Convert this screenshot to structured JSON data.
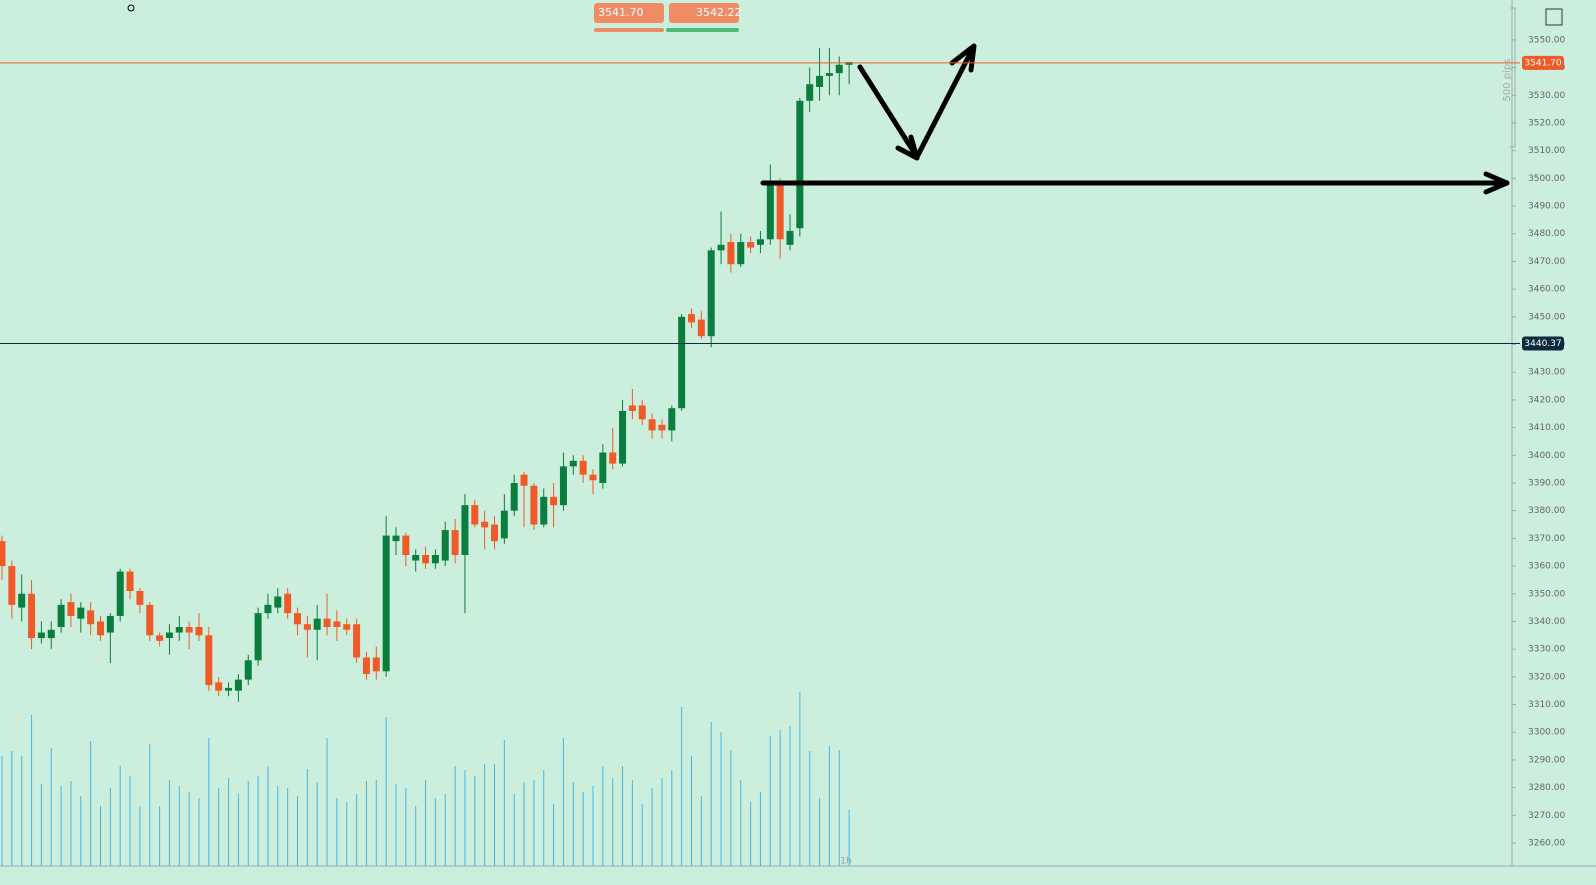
{
  "chart_data": {
    "type": "candlestick",
    "interval": "1h",
    "range_label": "500 pips",
    "sell_price": "3541.70",
    "buy_price": "3542.22",
    "ylim": [
      3251.7,
      3564.4
    ],
    "yticks": [
      {
        "value": 3550,
        "label": "3550.00"
      },
      {
        "value": 3540,
        "label": "3540.00"
      },
      {
        "value": 3530,
        "label": "3530.00"
      },
      {
        "value": 3520,
        "label": "3520.00"
      },
      {
        "value": 3510,
        "label": "3510.00"
      },
      {
        "value": 3500,
        "label": "3500.00"
      },
      {
        "value": 3490,
        "label": "3490.00"
      },
      {
        "value": 3480,
        "label": "3480.00"
      },
      {
        "value": 3470,
        "label": "3470.00"
      },
      {
        "value": 3460,
        "label": "3460.00"
      },
      {
        "value": 3450,
        "label": "3450.00"
      },
      {
        "value": 3440,
        "label": "3440.00"
      },
      {
        "value": 3430,
        "label": "3430.00"
      },
      {
        "value": 3420,
        "label": "3420.00"
      },
      {
        "value": 3410,
        "label": "3410.00"
      },
      {
        "value": 3400,
        "label": "3400.00"
      },
      {
        "value": 3390,
        "label": "3390.00"
      },
      {
        "value": 3380,
        "label": "3380.00"
      },
      {
        "value": 3370,
        "label": "3370.00"
      },
      {
        "value": 3360,
        "label": "3360.00"
      },
      {
        "value": 3350,
        "label": "3350.00"
      },
      {
        "value": 3340,
        "label": "3340.00"
      },
      {
        "value": 3330,
        "label": "3330.00"
      },
      {
        "value": 3320,
        "label": "3320.00"
      },
      {
        "value": 3310,
        "label": "3310.00"
      },
      {
        "value": 3300,
        "label": "3300.00"
      },
      {
        "value": 3290,
        "label": "3290.00"
      },
      {
        "value": 3280,
        "label": "3280.00"
      },
      {
        "value": 3270,
        "label": "3270.00"
      },
      {
        "value": 3260,
        "label": "3260.00"
      }
    ],
    "price_lines": [
      {
        "value": 3541.7,
        "label": "3541.70",
        "color": "#f05a28"
      },
      {
        "value": 3440.37,
        "label": "3440.37",
        "color": "#0d2a3f"
      }
    ],
    "up_color": "#0b7d3e",
    "down_color": "#f05a28",
    "volume_color": "#45b5e6",
    "ohlc": [
      [
        3369,
        3371,
        3355,
        3360
      ],
      [
        3360,
        3362,
        3341,
        3346
      ],
      [
        3345,
        3357,
        3340,
        3350
      ],
      [
        3350,
        3355,
        3330,
        3334
      ],
      [
        3334,
        3340,
        3332,
        3336
      ],
      [
        3334,
        3340,
        3330,
        3337
      ],
      [
        3338,
        3348,
        3336,
        3346
      ],
      [
        3347,
        3350,
        3338,
        3342
      ],
      [
        3341,
        3347,
        3336,
        3345
      ],
      [
        3344,
        3347,
        3335,
        3339
      ],
      [
        3340,
        3342,
        3333,
        3335
      ],
      [
        3336,
        3343,
        3325,
        3342
      ],
      [
        3342,
        3359,
        3340,
        3358
      ],
      [
        3358,
        3359,
        3348,
        3351
      ],
      [
        3351,
        3352,
        3343,
        3346
      ],
      [
        3346,
        3347,
        3333,
        3335
      ],
      [
        3335,
        3336,
        3331,
        3333
      ],
      [
        3334,
        3339,
        3328,
        3336
      ],
      [
        3336,
        3342,
        3333,
        3338
      ],
      [
        3338,
        3340,
        3330,
        3336
      ],
      [
        3338,
        3343,
        3333,
        3335
      ],
      [
        3335,
        3338,
        3315,
        3317
      ],
      [
        3318,
        3320,
        3313,
        3315
      ],
      [
        3315,
        3318,
        3313,
        3316
      ],
      [
        3315,
        3321,
        3311,
        3319
      ],
      [
        3319,
        3328,
        3317,
        3326
      ],
      [
        3326,
        3345,
        3324,
        3343
      ],
      [
        3343,
        3350,
        3341,
        3346
      ],
      [
        3345,
        3352,
        3343,
        3349
      ],
      [
        3350,
        3352,
        3341,
        3343
      ],
      [
        3343,
        3345,
        3335,
        3339
      ],
      [
        3339,
        3342,
        3327,
        3337
      ],
      [
        3337,
        3346,
        3326,
        3341
      ],
      [
        3341,
        3350,
        3335,
        3338
      ],
      [
        3340,
        3344,
        3333,
        3338
      ],
      [
        3339,
        3341,
        3335,
        3337
      ],
      [
        3339,
        3341,
        3325,
        3327
      ],
      [
        3327,
        3329,
        3319,
        3321
      ],
      [
        3327,
        3331,
        3319,
        3322
      ],
      [
        3322,
        3378,
        3320,
        3371
      ],
      [
        3369,
        3374,
        3364,
        3371
      ],
      [
        3371,
        3372,
        3360,
        3364
      ],
      [
        3362,
        3366,
        3358,
        3364
      ],
      [
        3364,
        3367,
        3359,
        3361
      ],
      [
        3361,
        3366,
        3359,
        3364
      ],
      [
        3362,
        3376,
        3360,
        3373
      ],
      [
        3373,
        3377,
        3361,
        3364
      ],
      [
        3364,
        3386,
        3343,
        3382
      ],
      [
        3382,
        3384,
        3374,
        3375
      ],
      [
        3376,
        3380,
        3366,
        3374
      ],
      [
        3375,
        3378,
        3366,
        3369
      ],
      [
        3370,
        3386,
        3368,
        3380
      ],
      [
        3380,
        3393,
        3378,
        3390
      ],
      [
        3393,
        3394,
        3374,
        3389
      ],
      [
        3389,
        3390,
        3373,
        3375
      ],
      [
        3375,
        3388,
        3374,
        3385
      ],
      [
        3385,
        3390,
        3374,
        3382
      ],
      [
        3382,
        3401,
        3380,
        3396
      ],
      [
        3396,
        3400,
        3393,
        3398
      ],
      [
        3398,
        3400,
        3390,
        3393
      ],
      [
        3393,
        3395,
        3386,
        3391
      ],
      [
        3390,
        3404,
        3388,
        3401
      ],
      [
        3401,
        3410,
        3395,
        3397
      ],
      [
        3397,
        3420,
        3396,
        3416
      ],
      [
        3418,
        3424,
        3413,
        3416
      ],
      [
        3418,
        3420,
        3411,
        3413
      ],
      [
        3413,
        3415,
        3406,
        3409
      ],
      [
        3411,
        3413,
        3406,
        3409
      ],
      [
        3409,
        3418,
        3405,
        3417
      ],
      [
        3417,
        3451,
        3416,
        3450
      ],
      [
        3451,
        3453,
        3446,
        3448
      ],
      [
        3449,
        3452,
        3442,
        3443
      ],
      [
        3443,
        3475,
        3439,
        3474
      ],
      [
        3474,
        3488,
        3469,
        3476
      ],
      [
        3477,
        3480,
        3466,
        3469
      ],
      [
        3469,
        3480,
        3468,
        3477
      ],
      [
        3477,
        3479,
        3473,
        3475
      ],
      [
        3476,
        3481,
        3473,
        3478
      ],
      [
        3478,
        3505,
        3476,
        3499
      ],
      [
        3499,
        3500,
        3471,
        3478
      ],
      [
        3476,
        3487,
        3474,
        3481
      ],
      [
        3482,
        3529,
        3479,
        3528
      ],
      [
        3528,
        3540,
        3524,
        3534
      ],
      [
        3533,
        3547,
        3528,
        3537
      ],
      [
        3537,
        3547,
        3530,
        3538
      ],
      [
        3538,
        3544,
        3530,
        3541
      ],
      [
        3541,
        3542,
        3534,
        3542
      ]
    ],
    "volume": [
      110,
      115,
      110,
      151,
      82,
      118,
      80,
      85,
      70,
      125,
      60,
      78,
      100,
      90,
      60,
      122,
      60,
      86,
      80,
      74,
      68,
      128,
      78,
      88,
      72,
      85,
      90,
      100,
      80,
      78,
      70,
      97,
      84,
      128,
      68,
      64,
      72,
      85,
      86,
      149,
      82,
      78,
      60,
      86,
      68,
      72,
      100,
      96,
      90,
      102,
      102,
      126,
      72,
      84,
      86,
      96,
      62,
      128,
      84,
      74,
      80,
      100,
      88,
      100,
      86,
      62,
      78,
      88,
      96,
      159,
      110,
      70,
      144,
      134,
      116,
      86,
      64,
      74,
      130,
      136,
      140,
      174,
      115,
      68,
      120,
      116,
      56
    ]
  }
}
